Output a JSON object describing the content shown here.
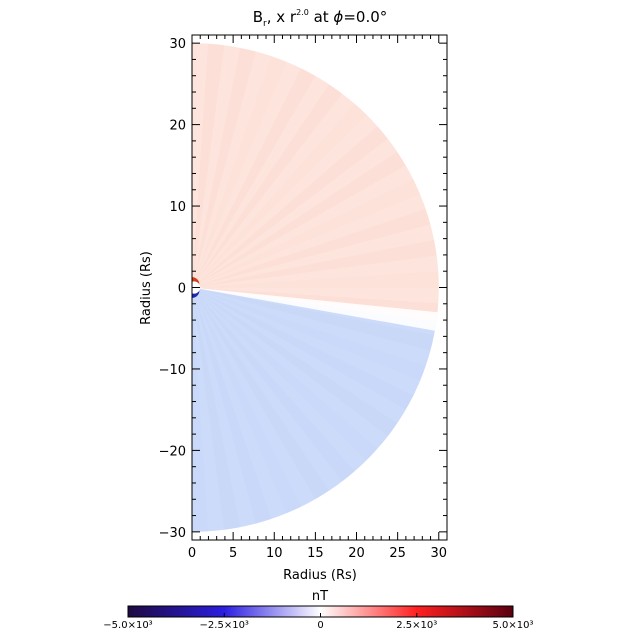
{
  "chart_data": {
    "type": "heatmap",
    "title": "B",
    "title_sub": "r",
    "title_x": ", x ",
    "title_exp": "2.0",
    "title_at": " at ",
    "title_phi": "ϕ",
    "title_val": "=0.0°",
    "xlabel": "Radius (Rs)",
    "ylabel": "Radius (Rs)",
    "xlim": [
      0,
      31
    ],
    "ylim": [
      -31,
      31
    ],
    "x_ticks": [
      0,
      5,
      10,
      15,
      20,
      25,
      30
    ],
    "y_ticks": [
      -30,
      -20,
      -10,
      0,
      10,
      20,
      30
    ],
    "x_tick_labels": [
      "0",
      "5",
      "10",
      "15",
      "20",
      "25",
      "30"
    ],
    "y_tick_labels": [
      "−30",
      "−20",
      "−10",
      "0",
      "10",
      "20",
      "30"
    ],
    "domain_radius": 30,
    "inner_radius": 1,
    "current_sheet_angle_deg": -8,
    "north_color": "#fde4dc",
    "south_color": "#cddbfa",
    "colorbar": {
      "label": "nT",
      "min": -5000,
      "max": 5000,
      "tick_labels": [
        "−5.0×10³",
        "−2.5×10³",
        "0",
        "2.5×10³",
        "5.0×10³"
      ],
      "tick_values": [
        -5000,
        -2500,
        0,
        2500,
        5000
      ],
      "colors": [
        "#1e0a40",
        "#2b1ee0",
        "#ffffff",
        "#ff2020",
        "#5a0010"
      ]
    }
  }
}
